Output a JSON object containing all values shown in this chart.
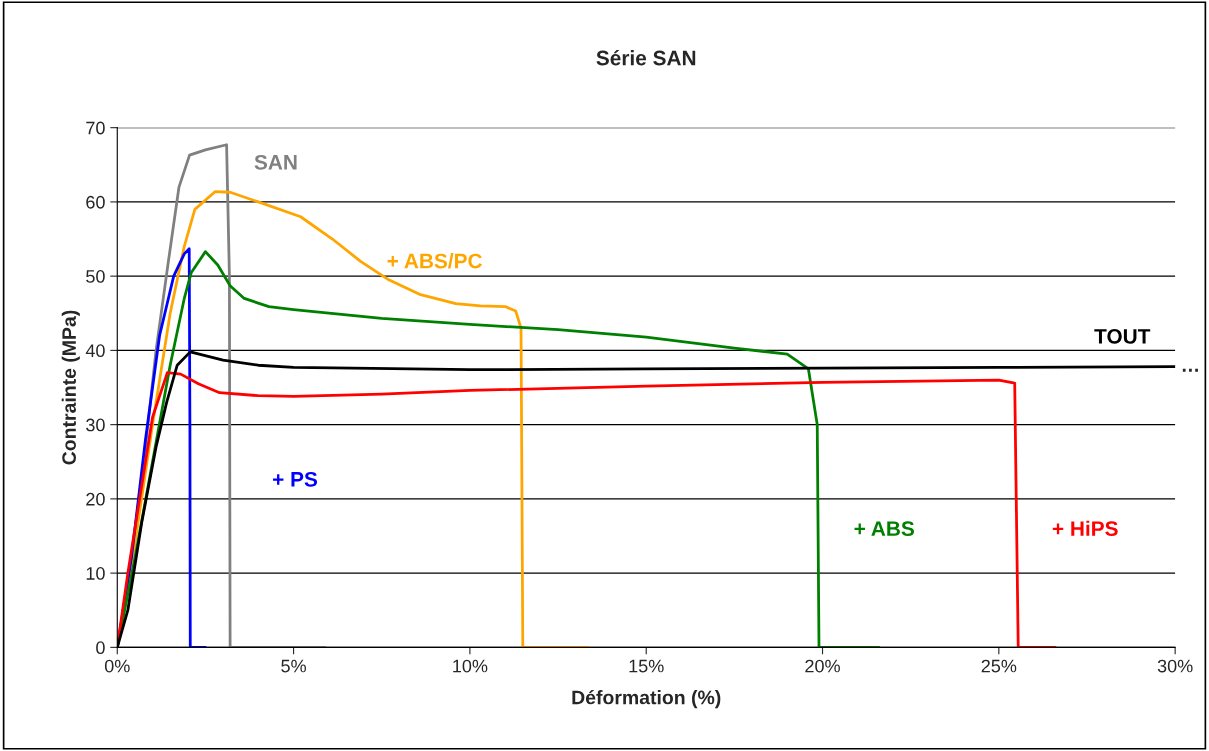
{
  "chart_data": {
    "type": "line",
    "title": "Série SAN",
    "xlabel": "Déformation (%)",
    "ylabel": "Contrainte (MPa)",
    "xlim": [
      0,
      30
    ],
    "xticks": [
      {
        "value": 0,
        "label": "0%"
      },
      {
        "value": 5,
        "label": "5%"
      },
      {
        "value": 10,
        "label": "10%"
      },
      {
        "value": 15,
        "label": "15%"
      },
      {
        "value": 20,
        "label": "20%"
      },
      {
        "value": 25,
        "label": "25%"
      },
      {
        "value": 30,
        "label": "30%"
      }
    ],
    "ylim": [
      0,
      70
    ],
    "yticks": [
      0,
      10,
      20,
      30,
      40,
      50,
      60,
      70
    ],
    "grid": "y",
    "legend": false,
    "marker": "none",
    "line_style": "solid",
    "series": [
      {
        "name": "SAN",
        "color": "#808080",
        "x": [
          0,
          0.3,
          0.8,
          1.1,
          1.45,
          1.75,
          2.05,
          2.5,
          3.1,
          3.18,
          3.2,
          5.9
        ],
        "values": [
          0,
          8,
          27,
          40,
          52,
          62,
          66.3,
          67,
          67.7,
          50,
          0,
          0
        ]
      },
      {
        "name": "+ ABS/PC",
        "color": "#ffa500",
        "x": [
          0,
          0.5,
          1.0,
          1.5,
          1.9,
          2.2,
          2.78,
          3.2,
          4.0,
          5.2,
          6.1,
          6.9,
          7.7,
          8.6,
          9.6,
          10.3,
          11.0,
          11.3,
          11.45,
          11.5,
          13.35
        ],
        "values": [
          0,
          14,
          30,
          45,
          54,
          59,
          61.4,
          61.3,
          60,
          58,
          55,
          52,
          49.5,
          47.5,
          46.3,
          46,
          45.9,
          45.3,
          43,
          0,
          0
        ]
      },
      {
        "name": "+ PS",
        "color": "#0000ff",
        "x": [
          0,
          0.4,
          0.8,
          1.2,
          1.6,
          1.9,
          2.04,
          2.06,
          2.07,
          2.5
        ],
        "values": [
          0,
          12,
          28,
          42,
          50,
          53,
          53.7,
          30,
          0,
          0
        ]
      },
      {
        "name": "+ ABS",
        "color": "#008000",
        "x": [
          0,
          0.5,
          1.0,
          1.5,
          1.9,
          2.1,
          2.5,
          2.85,
          3.2,
          3.6,
          4.3,
          5,
          7.5,
          10,
          12.5,
          15,
          17.5,
          19,
          19.6,
          19.85,
          19.9,
          21.6
        ],
        "values": [
          0,
          12,
          25,
          38,
          47,
          50.5,
          53.3,
          51.5,
          48.7,
          47,
          45.9,
          45.5,
          44.3,
          43.5,
          42.8,
          41.8,
          40.3,
          39.5,
          37.5,
          30,
          0,
          0
        ]
      },
      {
        "name": "+ HiPS",
        "color": "#ff0000",
        "x": [
          0,
          0.3,
          0.7,
          1.0,
          1.42,
          1.8,
          2.3,
          2.9,
          4,
          5,
          7.5,
          10,
          15,
          20,
          25,
          25.45,
          25.55,
          26.6
        ],
        "values": [
          0,
          10,
          22,
          31,
          37,
          36.8,
          35.5,
          34.3,
          33.9,
          33.8,
          34.1,
          34.6,
          35.2,
          35.7,
          36.0,
          35.6,
          0,
          0
        ]
      },
      {
        "name": "TOUT",
        "color": "#000000",
        "x": [
          0,
          0.3,
          0.7,
          1.1,
          1.4,
          1.7,
          2.07,
          3,
          4,
          5,
          10,
          15,
          20,
          25,
          30
        ],
        "values": [
          0,
          5,
          17,
          27,
          33,
          38,
          39.8,
          38.7,
          38,
          37.7,
          37.4,
          37.5,
          37.6,
          37.7,
          37.8
        ]
      }
    ],
    "annotations": [
      {
        "text": "…",
        "x": 30,
        "y": 37.8
      }
    ]
  }
}
